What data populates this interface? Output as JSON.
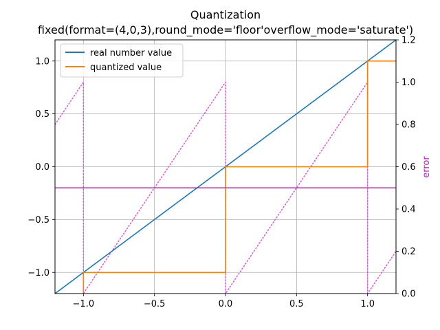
{
  "chart_data": {
    "type": "line",
    "title": "Quantization",
    "subtitle": "fixed(format=(4,0,3),round_mode='floor'overflow_mode='saturate')",
    "xlabel": "",
    "ylabel": "",
    "y2label": "error",
    "xlim": [
      -1.2,
      1.2
    ],
    "ylim": [
      -1.2,
      1.2
    ],
    "y2lim": [
      0,
      1.2
    ],
    "grid": true,
    "legend_position": "upper-left",
    "x_ticks": [
      -1.0,
      -0.5,
      0.0,
      0.5,
      1.0
    ],
    "x_tick_labels": [
      "−1.0",
      "−0.5",
      "0.0",
      "0.5",
      "1.0"
    ],
    "y_ticks": [
      -1.0,
      -0.5,
      0.0,
      0.5,
      1.0
    ],
    "y_tick_labels": [
      "−1.0",
      "−0.5",
      "0.0",
      "0.5",
      "1.0"
    ],
    "y2_ticks": [
      0.0,
      0.2,
      0.4,
      0.6,
      0.8,
      1.0,
      1.2
    ],
    "y2_tick_labels": [
      "0.0",
      "0.2",
      "0.4",
      "0.6",
      "0.8",
      "1.0",
      "1.2"
    ],
    "series": [
      {
        "name": "real number value",
        "axis": "left",
        "color": "#1f77b4",
        "style": "solid",
        "x": [
          -1.2,
          1.2
        ],
        "y": [
          -1.2,
          1.2
        ]
      },
      {
        "name": "quantized value",
        "axis": "left",
        "color": "#ff7f0e",
        "style": "solid",
        "x": [
          -1.0,
          -1.0,
          -0.0001,
          0.0,
          0.9999,
          1.0,
          1.2
        ],
        "y": [
          -1.2,
          -1.0,
          -1.0,
          0.0,
          0.0,
          1.0,
          1.0
        ]
      },
      {
        "name": "",
        "axis": "right",
        "color": "#d65ad6",
        "style": "dotted",
        "x": [
          -1.2,
          -1.0,
          -1.0,
          -1.0,
          -0.0001,
          0.0,
          0.0,
          0.0,
          0.9999,
          1.0,
          1.0,
          1.0,
          1.2
        ],
        "y": [
          0.8,
          1.0,
          0.0,
          0.0,
          1.0,
          1.0,
          0.0,
          0.0,
          1.0,
          1.0,
          0.0,
          0.0,
          0.2
        ]
      },
      {
        "name": "",
        "axis": "right",
        "color": "#c418c4",
        "style": "solid",
        "x": [
          -1.2,
          1.2
        ],
        "y": [
          0.5,
          0.5
        ]
      }
    ]
  }
}
